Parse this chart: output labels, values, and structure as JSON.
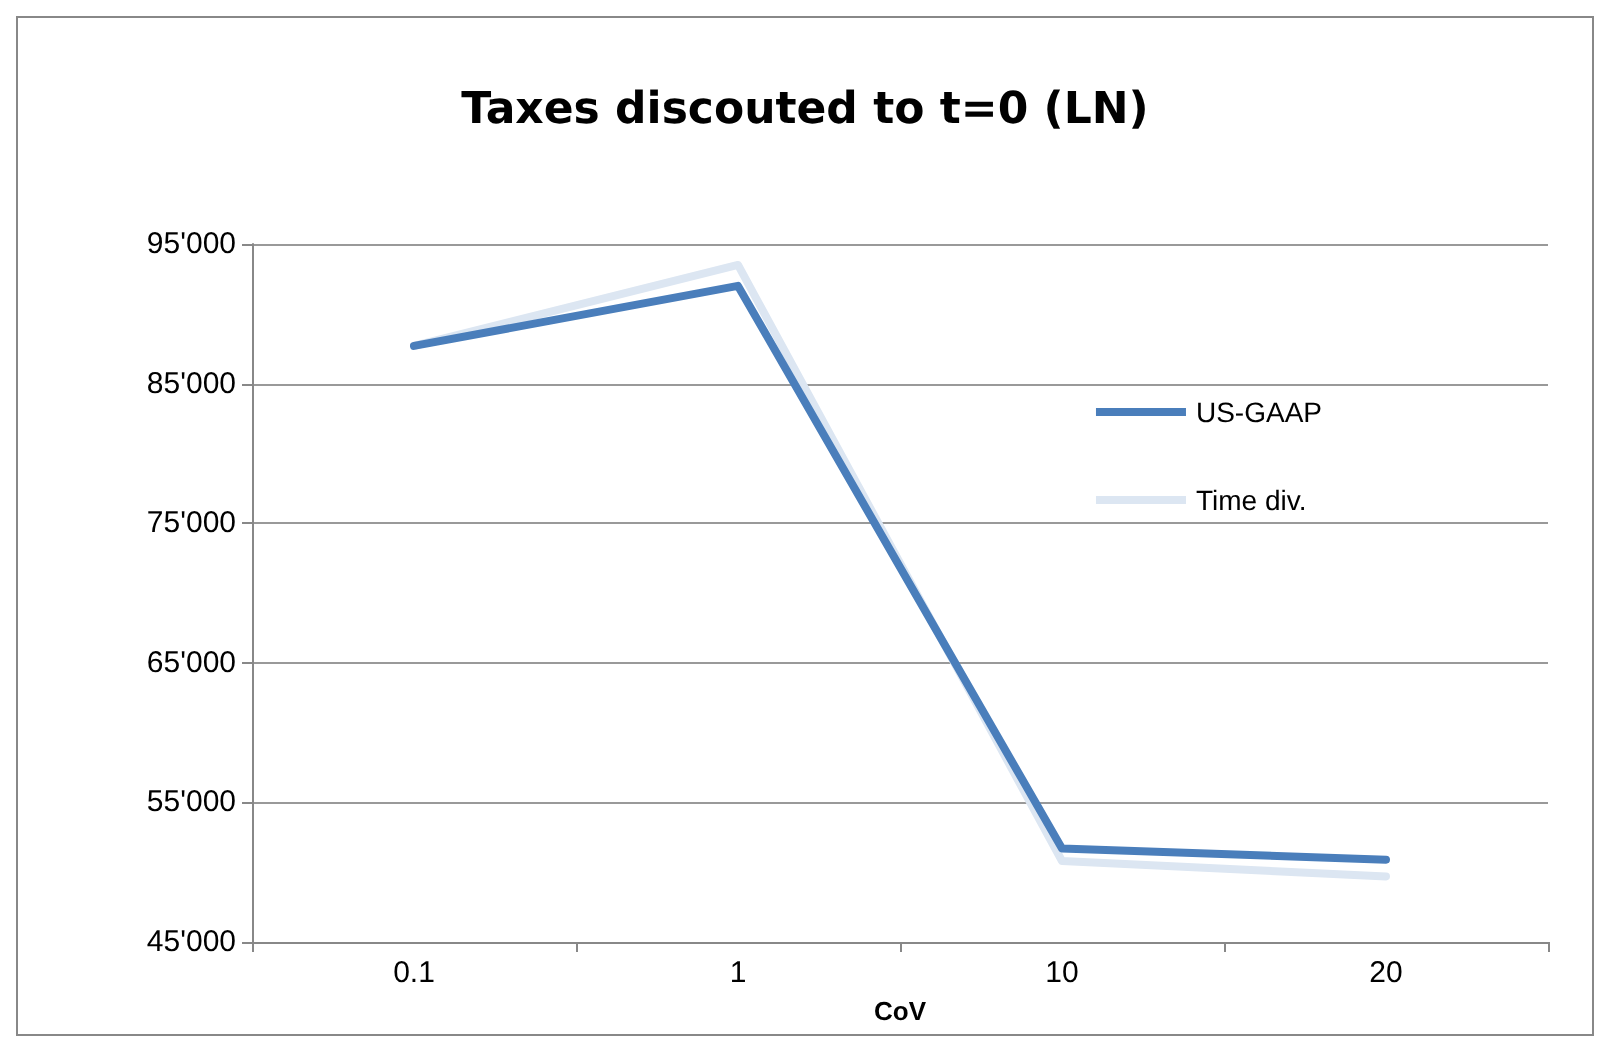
{
  "chart_data": {
    "type": "line",
    "title": "Taxes discouted to t=0 (LN)",
    "xlabel": "CoV",
    "categories": [
      "0.1",
      "1",
      "10",
      "20"
    ],
    "series": [
      {
        "name": "US-GAAP",
        "color": "#4a7ebb",
        "values": [
          87700,
          92000,
          51700,
          50900
        ]
      },
      {
        "name": "Time div.",
        "color": "#dce6f2",
        "values": [
          87700,
          93500,
          50800,
          49700
        ]
      }
    ],
    "ylim": [
      45000,
      95000
    ],
    "yticks": [
      {
        "value": 45000,
        "label": "45'000"
      },
      {
        "value": 55000,
        "label": "55'000"
      },
      {
        "value": 65000,
        "label": "65'000"
      },
      {
        "value": 75000,
        "label": "75'000"
      },
      {
        "value": 85000,
        "label": "85'000"
      },
      {
        "value": 95000,
        "label": "95'000"
      }
    ],
    "grid": "y",
    "legend": "right",
    "marker": "none",
    "line_style": "solid"
  }
}
